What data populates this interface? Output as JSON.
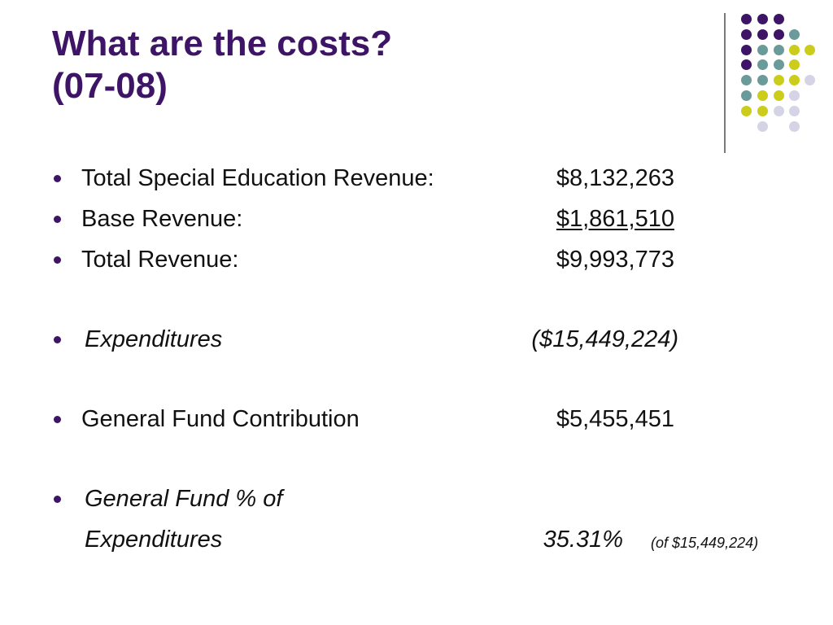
{
  "slide": {
    "title_line1": "What are the costs?",
    "title_line2": "(07-08)"
  },
  "items": [
    {
      "label": "Total Special Education Revenue:",
      "value": "$8,132,263"
    },
    {
      "label": "Base Revenue:",
      "value": "$1,861,510"
    },
    {
      "label": "Total Revenue:",
      "value": "$9,993,773"
    },
    {
      "label": "Expenditures",
      "value": "($15,449,224)"
    },
    {
      "label": "General Fund Contribution",
      "value": "$5,455,451"
    },
    {
      "label_line1": "General Fund % of",
      "label_line2": "Expenditures",
      "value": "35.31%",
      "note": "(of $15,449,224)"
    }
  ],
  "colors": {
    "title": "#3d1466",
    "purple": "#3d1466",
    "teal": "#6a9a9a",
    "lime": "#cccc1a",
    "lavender": "#d4d4e6"
  }
}
